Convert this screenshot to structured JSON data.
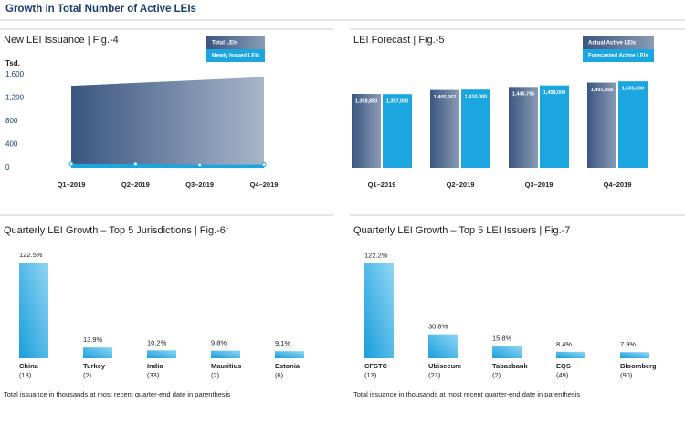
{
  "title": "Growth in Total Number of Active LEIs",
  "chart_data": [
    {
      "type": "area",
      "title": "New LEI Issuance  |  Fig.-4",
      "ylabel": "Tsd.",
      "categories": [
        "Q1–2019",
        "Q2–2019",
        "Q3–2019",
        "Q4–2019"
      ],
      "ylim": [
        0,
        1600
      ],
      "yticks": [
        0,
        400,
        800,
        {
          "value": 1200,
          "label": "1,200"
        },
        {
          "value": 1600,
          "label": "1,600"
        }
      ],
      "series": [
        {
          "name": "Total LEIs",
          "color": "#3e5a85",
          "values": [
            1410,
            1460,
            1510,
            1560
          ]
        },
        {
          "name": "Newly Issued LEIs",
          "color": "#1ba6e0",
          "values": [
            65,
            62,
            50,
            55
          ]
        }
      ]
    },
    {
      "type": "grouped-bar",
      "title": "LEI Forecast  |  Fig.-5",
      "categories": [
        "Q1–2019",
        "Q2–2019",
        "Q3–2019",
        "Q4–2019"
      ],
      "ylim": [
        500000,
        1550000
      ],
      "series": [
        {
          "name": "Actual Active LEIs",
          "color": "#3e5a85",
          "values": [
            1358880,
            1405662,
            1440795,
            1491458
          ],
          "value_labels": [
            "1,358,880",
            "1,405,662",
            "1,440,795",
            "1,491,458"
          ]
        },
        {
          "name": "Forecasted Active LEIs",
          "color": "#1ba6e0",
          "values": [
            1357000,
            1410000,
            1458000,
            1506000
          ],
          "value_labels": [
            "1,357,000",
            "1,410,000",
            "1,458,000",
            "1,506,000"
          ]
        }
      ]
    },
    {
      "type": "bar",
      "title": "Quarterly LEI Growth – Top 5 Jurisdictions  |  Fig.-6",
      "title_superscript": "1",
      "categories": [
        "China",
        "Turkey",
        "India",
        "Mauritius",
        "Estonia"
      ],
      "category_notes": [
        "(13)",
        "(2)",
        "(33)",
        "(2)",
        "(6)"
      ],
      "values": [
        122.5,
        13.9,
        10.2,
        9.8,
        9.1
      ],
      "value_labels": [
        "122.5%",
        "13.9%",
        "10.2%",
        "9.8%",
        "9.1%"
      ],
      "ylim": [
        0,
        125
      ],
      "color": "#1ba6e0",
      "footnote": "Total issuance in thousands at most recent quarter-end date in parenthesis"
    },
    {
      "type": "bar",
      "title": "Quarterly LEI Growth – Top 5 LEI Issuers  |  Fig.-7",
      "categories": [
        "CFSTC",
        "Ubisecure",
        "Tabasbank",
        "EQS",
        "Bloomberg"
      ],
      "category_notes": [
        "(13)",
        "(23)",
        "(2)",
        "(49)",
        "(90)"
      ],
      "values": [
        122.2,
        30.8,
        15.8,
        8.4,
        7.9
      ],
      "value_labels": [
        "122.2%",
        "30.8%",
        "15.8%",
        "8.4%",
        "7.9%"
      ],
      "ylim": [
        0,
        125
      ],
      "color": "#1ba6e0",
      "footnote": "Total issuance in thousands at most recent quarter-end date in parenthesis"
    }
  ]
}
